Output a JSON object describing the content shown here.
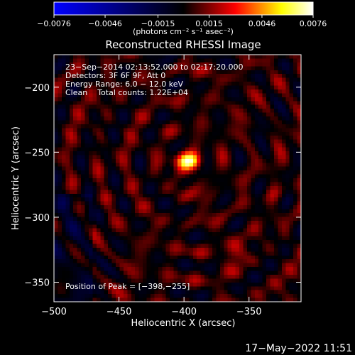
{
  "chart_data": {
    "type": "heatmap",
    "title": "Reconstructed RHESSI Image",
    "xlabel": "Heliocentric X (arcsec)",
    "ylabel": "Heliocentric Y (arcsec)",
    "xlim": [
      -500,
      -310
    ],
    "ylim": [
      -365,
      -175
    ],
    "x_ticks": [
      -500,
      -450,
      -400,
      -350
    ],
    "y_ticks": [
      -200,
      -250,
      -300,
      -350
    ],
    "x_tick_labels": [
      "−500",
      "−450",
      "−400",
      "−350"
    ],
    "y_tick_labels": [
      "−200",
      "−250",
      "−300",
      "−350"
    ],
    "colorbar": {
      "range": [
        -0.0076,
        0.0076
      ],
      "ticks": [
        -0.0076,
        -0.0046,
        -0.0015,
        0.0015,
        0.0046,
        0.0076
      ],
      "tick_labels": [
        "−0.0076",
        "−0.0046",
        "−0.0015",
        "0.0015",
        "0.0046",
        "0.0076"
      ],
      "units_label": "(photons cm⁻² s⁻¹ asec⁻²)"
    },
    "annotations": [
      "23−Sep−2014 02:13:52.000 to 02:17:20.000",
      "Detectors: 3F 6F 9F, Att 0",
      "Energy Range: 6.0 − 12.0 keV",
      "Clean    Total counts: 1.22E+04"
    ],
    "peak_label": "Position of Peak = [−398,−255]",
    "peak": {
      "x": -398,
      "y": -255
    },
    "footer_date": "17−May−2022 11:51",
    "colormap": [
      "#0000ff",
      "#000000",
      "#ff0000",
      "#ffff00",
      "#ffffff"
    ],
    "grid": false
  }
}
